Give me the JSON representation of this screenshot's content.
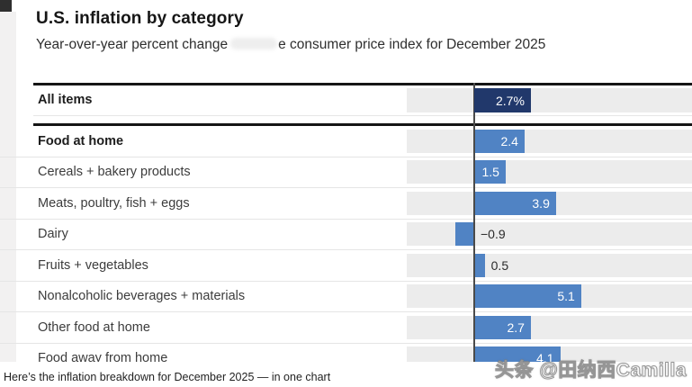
{
  "header": {
    "title": "U.S. inflation by category",
    "subtitle_part1": "Year-over-year percent change",
    "subtitle_part2": "e consumer price index for December 2025"
  },
  "chart_data": {
    "type": "bar",
    "orientation": "horizontal",
    "unit": "percent year-over-year",
    "period": "December 2025",
    "zero_baseline": 0,
    "grid": "off",
    "all_items": {
      "label": "All items",
      "value": 2.7,
      "display": "2.7%",
      "bold": true
    },
    "rows": [
      {
        "label": "Food at home",
        "value": 2.4,
        "display": "2.4",
        "bold": true
      },
      {
        "label": "Cereals + bakery products",
        "value": 1.5,
        "display": "1.5",
        "bold": false
      },
      {
        "label": "Meats, poultry, fish + eggs",
        "value": 3.9,
        "display": "3.9",
        "bold": false
      },
      {
        "label": "Dairy",
        "value": -0.9,
        "display": "−0.9",
        "bold": false
      },
      {
        "label": "Fruits + vegetables",
        "value": 0.5,
        "display": "0.5",
        "bold": false
      },
      {
        "label": "Nonalcoholic beverages + materials",
        "value": 5.1,
        "display": "5.1",
        "bold": false
      },
      {
        "label": "Other food at home",
        "value": 2.7,
        "display": "2.7",
        "bold": false
      },
      {
        "label": "Food away from home",
        "value": 4.1,
        "display": "4.1",
        "bold": false
      }
    ],
    "colors": {
      "all_items_bar": "#21386b",
      "category_bar": "#5083c4",
      "track": "#ececec",
      "zero_line": "#4a4a4a"
    }
  },
  "footer": {
    "caption": "Here’s the inflation breakdown for December 2025 — in one chart"
  },
  "watermark": {
    "text": "头条 @田纳西Camilla"
  }
}
